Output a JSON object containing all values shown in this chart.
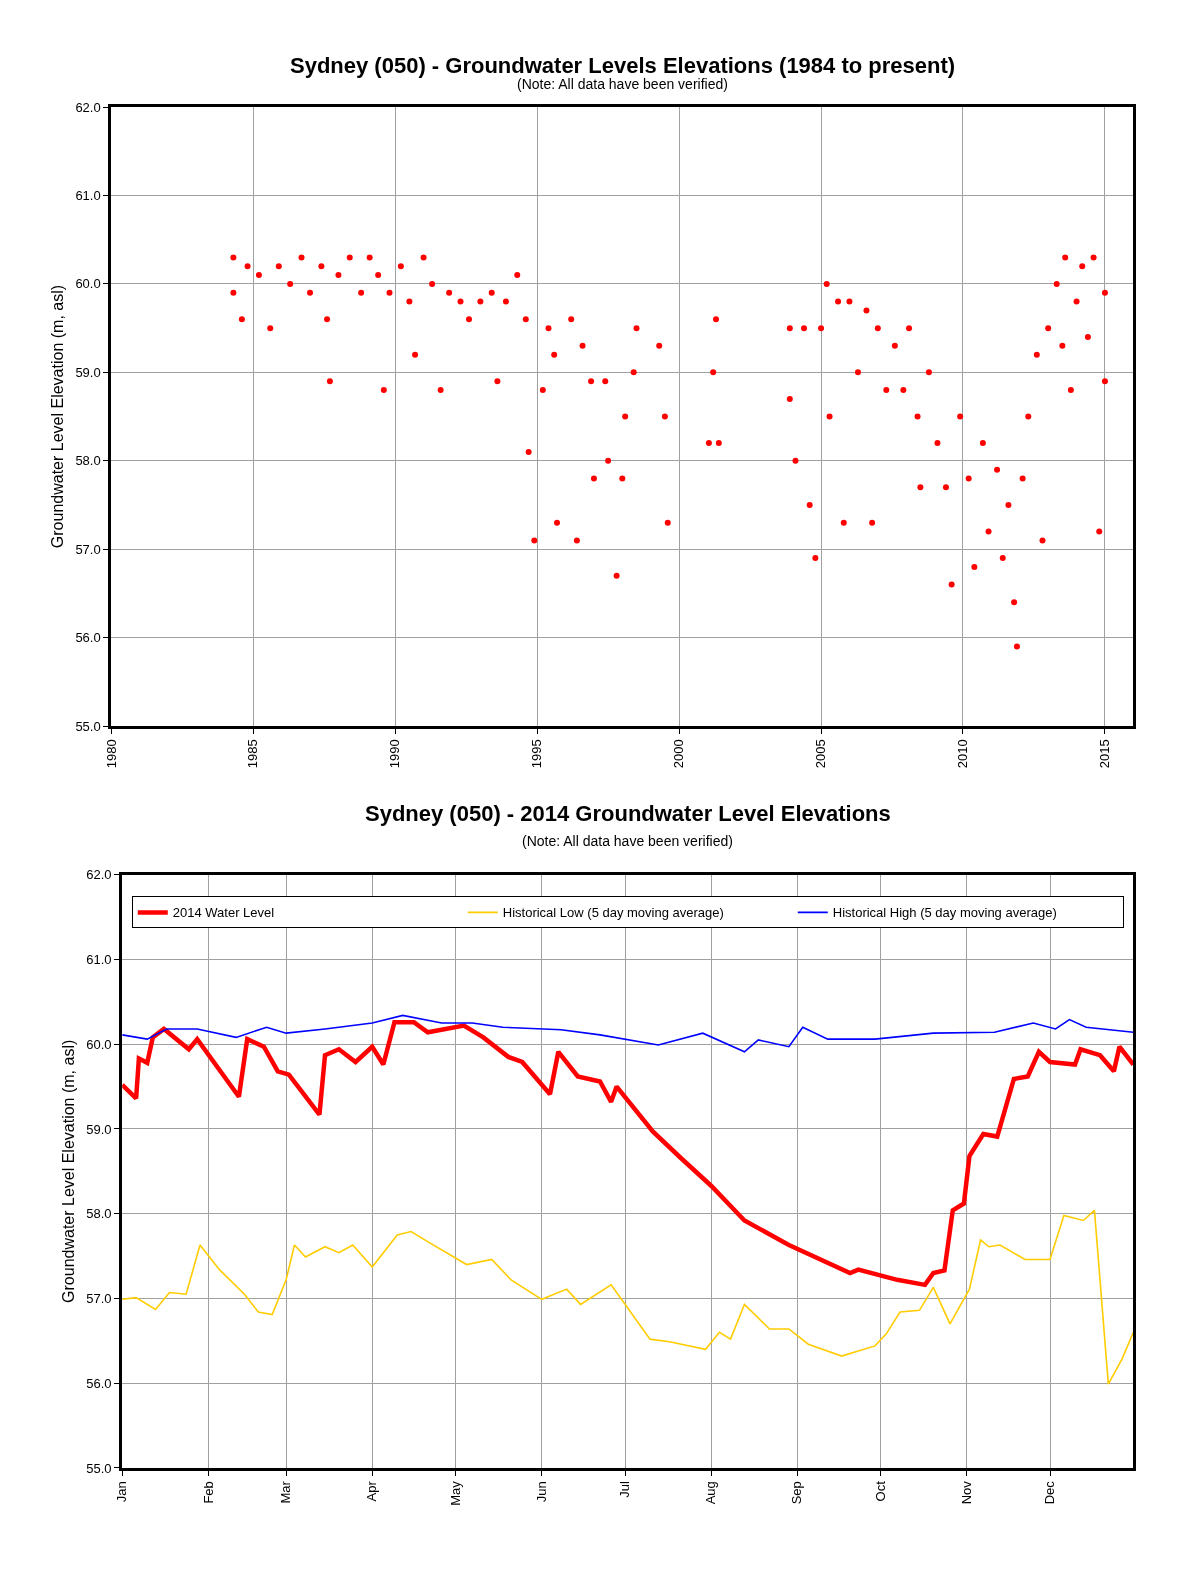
{
  "chart_data": [
    {
      "type": "scatter",
      "title": "Sydney (050) - Groundwater Levels Elevations (1984 to present)",
      "subtitle": "(Note: All data have been verified)",
      "ylabel": "Groundwater Level Elevation (m, asl)",
      "marker": "circle",
      "grid": true,
      "xlim": [
        1980,
        2016
      ],
      "ylim": [
        55,
        62
      ],
      "xticks": [
        1980,
        1985,
        1990,
        1995,
        2000,
        2005,
        2010,
        2015
      ],
      "yticks": [
        {
          "value": 55,
          "label": "55.0"
        },
        {
          "value": 56,
          "label": "56.0"
        },
        {
          "value": 57,
          "label": "57.0"
        },
        {
          "value": 58,
          "label": "58.0"
        },
        {
          "value": 59,
          "label": "59.0"
        },
        {
          "value": 60,
          "label": "60.0"
        },
        {
          "value": 61,
          "label": "61.0"
        },
        {
          "value": 62,
          "label": "62.0"
        }
      ],
      "series": [
        {
          "color": "#ff0000",
          "x": [
            1984.3,
            1984.3,
            1984.6,
            1984.8,
            1985.2,
            1985.6,
            1985.9,
            1986.3,
            1986.7,
            1987.0,
            1987.4,
            1987.6,
            1987.7,
            1988.0,
            1988.4,
            1988.8,
            1989.1,
            1989.4,
            1989.6,
            1989.8,
            1990.2,
            1990.5,
            1990.7,
            1991.0,
            1991.3,
            1991.6,
            1991.9,
            1992.3,
            1992.6,
            1993.0,
            1993.4,
            1993.6,
            1993.9,
            1994.3,
            1994.6,
            1994.7,
            1994.9,
            1995.2,
            1995.4,
            1995.6,
            1995.7,
            1996.2,
            1996.4,
            1996.6,
            1996.9,
            1997.0,
            1997.4,
            1997.5,
            1997.8,
            1998.0,
            1998.1,
            1998.4,
            1998.5,
            1999.3,
            1999.5,
            1999.6,
            2001.05,
            2001.2,
            2001.3,
            2001.4,
            2003.9,
            2003.9,
            2004.1,
            2004.4,
            2004.6,
            2004.8,
            2005.0,
            2005.2,
            2005.3,
            2005.6,
            2005.8,
            2006.0,
            2006.3,
            2006.6,
            2006.8,
            2007.0,
            2007.3,
            2007.6,
            2007.9,
            2008.1,
            2008.4,
            2008.5,
            2008.8,
            2009.1,
            2009.4,
            2009.6,
            2009.9,
            2010.2,
            2010.4,
            2010.7,
            2010.9,
            2011.2,
            2011.4,
            2011.6,
            2011.8,
            2011.9,
            2012.1,
            2012.3,
            2012.6,
            2012.8,
            2013.0,
            2013.3,
            2013.5,
            2013.6,
            2013.8,
            2014.0,
            2014.2,
            2014.4,
            2014.6,
            2014.8,
            2015.0,
            2015.0
          ],
          "values": [
            60.3,
            59.9,
            59.6,
            60.2,
            60.1,
            59.5,
            60.2,
            60.0,
            60.3,
            59.9,
            60.2,
            59.6,
            58.9,
            60.1,
            60.3,
            59.9,
            60.3,
            60.1,
            58.8,
            59.9,
            60.2,
            59.8,
            59.2,
            60.3,
            60.0,
            58.8,
            59.9,
            59.8,
            59.6,
            59.8,
            59.9,
            58.9,
            59.8,
            60.1,
            59.6,
            58.1,
            57.1,
            58.8,
            59.5,
            59.2,
            57.3,
            59.6,
            57.1,
            59.3,
            58.9,
            57.8,
            58.9,
            58.0,
            56.7,
            57.8,
            58.5,
            59.0,
            59.5,
            59.3,
            58.5,
            57.3,
            58.2,
            59.0,
            59.6,
            58.2,
            59.5,
            58.7,
            58.0,
            59.5,
            57.5,
            56.9,
            59.5,
            60.0,
            58.5,
            59.8,
            57.3,
            59.8,
            59.0,
            59.7,
            57.3,
            59.5,
            58.8,
            59.3,
            58.8,
            59.5,
            58.5,
            57.7,
            59.0,
            58.2,
            57.7,
            56.6,
            58.5,
            57.8,
            56.8,
            58.2,
            57.2,
            57.9,
            56.9,
            57.5,
            56.4,
            55.9,
            57.8,
            58.5,
            59.2,
            57.1,
            59.5,
            60.0,
            59.3,
            60.3,
            58.8,
            59.8,
            60.2,
            59.4,
            60.3,
            57.2,
            59.9,
            58.9
          ]
        }
      ]
    },
    {
      "type": "line",
      "title": "Sydney (050) - 2014 Groundwater Level Elevations",
      "subtitle": "(Note: All data have been verified)",
      "ylabel": "Groundwater Level Elevation (m, asl)",
      "line_style": "solid",
      "grid": true,
      "legend": "top",
      "xlim": [
        "--01-01",
        "--12-31"
      ],
      "ylim": [
        55,
        62
      ],
      "xticks": [
        {
          "value": "--01-01",
          "label": "Jan"
        },
        {
          "value": "--02-01",
          "label": "Feb"
        },
        {
          "value": "--03-01",
          "label": "Mar"
        },
        {
          "value": "--04-01",
          "label": "Apr"
        },
        {
          "value": "--05-01",
          "label": "May"
        },
        {
          "value": "--06-01",
          "label": "Jun"
        },
        {
          "value": "--07-01",
          "label": "Jul"
        },
        {
          "value": "--08-01",
          "label": "Aug"
        },
        {
          "value": "--09-01",
          "label": "Sep"
        },
        {
          "value": "--10-01",
          "label": "Oct"
        },
        {
          "value": "--11-01",
          "label": "Nov"
        },
        {
          "value": "--12-01",
          "label": "Dec"
        }
      ],
      "yticks": [
        {
          "value": 55,
          "label": "55.0"
        },
        {
          "value": 56,
          "label": "56.0"
        },
        {
          "value": 57,
          "label": "57.0"
        },
        {
          "value": 58,
          "label": "58.0"
        },
        {
          "value": 59,
          "label": "59.0"
        },
        {
          "value": 60,
          "label": "60.0"
        },
        {
          "value": 61,
          "label": "61.0"
        },
        {
          "value": 62,
          "label": "62.0"
        }
      ],
      "series": [
        {
          "name": "2014 Water Level",
          "color": "#ff0000",
          "x": [
            "--01-01",
            "--01-06",
            "--01-07",
            "--01-10",
            "--01-12",
            "--01-16",
            "--01-25",
            "--01-28",
            "--02-12",
            "--02-15",
            "--02-21",
            "--02-26",
            "--03-02",
            "--03-13",
            "--03-15",
            "--03-20",
            "--03-26",
            "--04-01",
            "--04-05",
            "--04-09",
            "--04-16",
            "--04-21",
            "--05-04",
            "--05-11",
            "--05-20",
            "--05-25",
            "--06-04",
            "--06-07",
            "--06-14",
            "--06-22",
            "--06-26",
            "--06-28",
            "--07-11",
            "--07-21",
            "--08-01",
            "--08-13",
            "--08-29",
            "--09-20",
            "--09-23",
            "--10-07",
            "--10-17",
            "--10-20",
            "--10-24",
            "--10-27",
            "--10-31",
            "--11-02",
            "--11-07",
            "--11-12",
            "--11-18",
            "--11-23",
            "--11-27",
            "--12-01",
            "--12-10",
            "--12-12",
            "--12-19",
            "--12-24",
            "--12-26",
            "--12-31"
          ],
          "values": [
            59.52,
            59.36,
            59.83,
            59.78,
            60.08,
            60.18,
            59.94,
            60.06,
            59.38,
            60.06,
            59.97,
            59.68,
            59.64,
            59.17,
            59.87,
            59.94,
            59.79,
            59.97,
            59.76,
            60.26,
            60.26,
            60.14,
            60.22,
            60.08,
            59.85,
            59.79,
            59.41,
            59.91,
            59.62,
            59.56,
            59.32,
            59.5,
            58.97,
            58.66,
            58.33,
            57.92,
            57.63,
            57.3,
            57.34,
            57.22,
            57.16,
            57.3,
            57.33,
            58.04,
            58.12,
            58.68,
            58.94,
            58.91,
            59.59,
            59.62,
            59.91,
            59.79,
            59.76,
            59.94,
            59.87,
            59.68,
            59.97,
            59.76
          ]
        },
        {
          "name": "Historical Low (5 day moving average)",
          "color": "#ffcc00",
          "x": [
            "--01-01",
            "--01-06",
            "--01-13",
            "--01-18",
            "--01-24",
            "--01-29",
            "--02-05",
            "--02-14",
            "--02-19",
            "--02-24",
            "--03-01",
            "--03-04",
            "--03-08",
            "--03-15",
            "--03-20",
            "--03-25",
            "--04-01",
            "--04-10",
            "--04-15",
            "--04-22",
            "--05-05",
            "--05-14",
            "--05-21",
            "--06-01",
            "--06-10",
            "--06-15",
            "--06-26",
            "--07-10",
            "--07-17",
            "--07-30",
            "--08-04",
            "--08-08",
            "--08-13",
            "--08-22",
            "--08-29",
            "--09-05",
            "--09-17",
            "--09-29",
            "--10-03",
            "--10-08",
            "--10-15",
            "--10-20",
            "--10-26",
            "--11-02",
            "--11-06",
            "--11-09",
            "--11-13",
            "--11-22",
            "--12-01",
            "--12-06",
            "--12-13",
            "--12-17",
            "--12-22",
            "--12-27",
            "--12-31"
          ],
          "values": [
            56.99,
            57.01,
            56.87,
            57.07,
            57.05,
            57.63,
            57.34,
            57.05,
            56.84,
            56.81,
            57.22,
            57.63,
            57.49,
            57.61,
            57.54,
            57.63,
            57.37,
            57.75,
            57.79,
            57.65,
            57.4,
            57.46,
            57.22,
            56.99,
            57.11,
            56.93,
            57.16,
            56.52,
            56.49,
            56.4,
            56.6,
            56.52,
            56.93,
            56.64,
            56.64,
            56.46,
            56.32,
            56.44,
            56.58,
            56.84,
            56.86,
            57.13,
            56.7,
            57.11,
            57.69,
            57.61,
            57.63,
            57.46,
            57.46,
            57.98,
            57.92,
            58.04,
            55.99,
            56.29,
            56.6
          ]
        },
        {
          "name": "Historical High (5 day moving average)",
          "color": "#0000ff",
          "x": [
            "--01-01",
            "--01-10",
            "--01-17",
            "--01-28",
            "--02-11",
            "--02-22",
            "--03-01",
            "--03-15",
            "--04-01",
            "--04-12",
            "--04-26",
            "--05-07",
            "--05-18",
            "--06-08",
            "--06-22",
            "--07-13",
            "--07-29",
            "--08-13",
            "--08-18",
            "--08-29",
            "--09-03",
            "--09-12",
            "--09-29",
            "--10-20",
            "--11-11",
            "--11-25",
            "--12-03",
            "--12-08",
            "--12-14",
            "--12-31"
          ],
          "values": [
            60.11,
            60.06,
            60.18,
            60.18,
            60.08,
            60.2,
            60.13,
            60.18,
            60.25,
            60.34,
            60.25,
            60.25,
            60.2,
            60.17,
            60.11,
            59.99,
            60.13,
            59.91,
            60.05,
            59.97,
            60.2,
            60.06,
            60.06,
            60.13,
            60.14,
            60.25,
            60.18,
            60.29,
            60.2,
            60.14
          ]
        }
      ]
    }
  ]
}
